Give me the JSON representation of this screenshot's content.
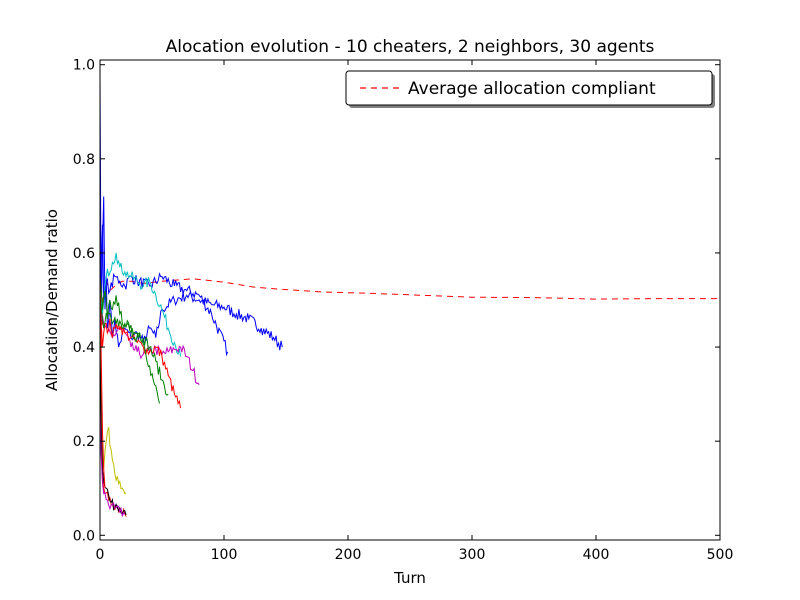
{
  "chart_data": {
    "type": "line",
    "title": "Alocation evolution - 10 cheaters, 2 neighbors, 30 agents",
    "xlabel": "Turn",
    "ylabel": "Allocation/Demand ratio",
    "xlim": [
      0,
      500
    ],
    "ylim": [
      -0.01,
      1.01
    ],
    "xticks": [
      "0",
      "100",
      "200",
      "300",
      "400",
      "500"
    ],
    "yticks": [
      "0.0",
      "0.2",
      "0.4",
      "0.6",
      "0.8",
      "1.0"
    ],
    "grid": false,
    "legend": {
      "position": "top-right",
      "entries": [
        "Average allocation compliant"
      ]
    },
    "series": [
      {
        "name": "Average allocation compliant",
        "color": "#ff0000",
        "dashed": true,
        "legend": true,
        "x": [
          1,
          2,
          3,
          5,
          8,
          12,
          18,
          25,
          35,
          50,
          75,
          100,
          125,
          150,
          180,
          220,
          260,
          300,
          350,
          400,
          450,
          500
        ],
        "y": [
          0.4,
          0.49,
          0.52,
          0.54,
          0.52,
          0.53,
          0.54,
          0.54,
          0.535,
          0.54,
          0.545,
          0.538,
          0.527,
          0.522,
          0.517,
          0.514,
          0.51,
          0.506,
          0.505,
          0.502,
          0.503,
          0.503
        ]
      },
      {
        "color": "#0000ff",
        "x": [
          0,
          1,
          2,
          3,
          4,
          5,
          6,
          8,
          10,
          12,
          15,
          20,
          25,
          30,
          35,
          40,
          45,
          50,
          60,
          70,
          80,
          90,
          100,
          110,
          120,
          130,
          140,
          147
        ],
        "y": [
          0.97,
          0.45,
          0.62,
          0.72,
          0.48,
          0.55,
          0.44,
          0.5,
          0.42,
          0.46,
          0.4,
          0.44,
          0.42,
          0.43,
          0.41,
          0.44,
          0.42,
          0.48,
          0.5,
          0.51,
          0.5,
          0.49,
          0.485,
          0.47,
          0.46,
          0.44,
          0.42,
          0.4
        ]
      },
      {
        "color": "#0000ff",
        "x": [
          0,
          1,
          2,
          3,
          5,
          8,
          12,
          16,
          20,
          25,
          30,
          40,
          50,
          60,
          70,
          80,
          90,
          103
        ],
        "y": [
          0.35,
          0.58,
          0.66,
          0.5,
          0.54,
          0.52,
          0.55,
          0.54,
          0.53,
          0.55,
          0.54,
          0.53,
          0.55,
          0.53,
          0.52,
          0.51,
          0.47,
          0.39
        ]
      },
      {
        "color": "#00bfbf",
        "x": [
          0,
          2,
          5,
          10,
          13,
          16,
          20,
          25,
          30,
          35,
          40,
          45,
          50,
          55,
          60,
          65
        ],
        "y": [
          0.52,
          0.47,
          0.55,
          0.58,
          0.6,
          0.57,
          0.56,
          0.55,
          0.54,
          0.53,
          0.54,
          0.51,
          0.48,
          0.44,
          0.41,
          0.38
        ]
      },
      {
        "color": "#bf00bf",
        "x": [
          0,
          3,
          6,
          10,
          15,
          20,
          25,
          30,
          35,
          40,
          45,
          50,
          55,
          60,
          65,
          70,
          75,
          80
        ],
        "y": [
          0.48,
          0.45,
          0.43,
          0.42,
          0.44,
          0.43,
          0.4,
          0.39,
          0.385,
          0.39,
          0.395,
          0.385,
          0.39,
          0.395,
          0.4,
          0.38,
          0.35,
          0.32
        ]
      },
      {
        "color": "#ff0000",
        "x": [
          0,
          2,
          4,
          6,
          8,
          10,
          12,
          15,
          20,
          25,
          30,
          35,
          40,
          45,
          50,
          55,
          60,
          65
        ],
        "y": [
          0.52,
          0.4,
          0.45,
          0.43,
          0.46,
          0.42,
          0.44,
          0.45,
          0.43,
          0.42,
          0.41,
          0.4,
          0.39,
          0.4,
          0.38,
          0.34,
          0.3,
          0.27
        ]
      },
      {
        "color": "#008000",
        "x": [
          0,
          2,
          4,
          6,
          8,
          10,
          13,
          16,
          20,
          24,
          28,
          32,
          36,
          40,
          44,
          48
        ],
        "y": [
          0.55,
          0.48,
          0.52,
          0.46,
          0.5,
          0.48,
          0.51,
          0.47,
          0.45,
          0.44,
          0.42,
          0.43,
          0.4,
          0.36,
          0.32,
          0.28
        ]
      },
      {
        "color": "#008000",
        "x": [
          0,
          3,
          6,
          10,
          14,
          18,
          22,
          26,
          30,
          35,
          40,
          45,
          50,
          55
        ],
        "y": [
          0.5,
          0.44,
          0.47,
          0.45,
          0.46,
          0.44,
          0.45,
          0.44,
          0.43,
          0.42,
          0.4,
          0.37,
          0.33,
          0.3
        ]
      },
      {
        "color": "#bfbf00",
        "x": [
          0,
          1,
          2,
          3,
          4,
          5,
          6,
          7,
          8,
          10,
          12,
          15,
          18,
          21
        ],
        "y": [
          0.52,
          0.3,
          0.16,
          0.14,
          0.18,
          0.2,
          0.22,
          0.23,
          0.19,
          0.16,
          0.13,
          0.11,
          0.1,
          0.09
        ]
      },
      {
        "color": "#ff0000",
        "x": [
          0,
          1,
          2,
          3,
          5,
          7,
          9,
          12,
          15,
          18,
          21
        ],
        "y": [
          0.36,
          0.2,
          0.12,
          0.1,
          0.09,
          0.075,
          0.065,
          0.055,
          0.05,
          0.045,
          0.04
        ]
      },
      {
        "color": "#000000",
        "x": [
          0,
          1,
          2,
          3,
          5,
          7,
          9,
          12,
          15,
          18,
          21
        ],
        "y": [
          0.4,
          0.23,
          0.14,
          0.115,
          0.1,
          0.085,
          0.07,
          0.06,
          0.052,
          0.046,
          0.043
        ]
      },
      {
        "color": "#bf00bf",
        "x": [
          0,
          1,
          2,
          4,
          6,
          9,
          12,
          16,
          20
        ],
        "y": [
          0.28,
          0.17,
          0.11,
          0.09,
          0.075,
          0.065,
          0.058,
          0.05,
          0.045
        ]
      },
      {
        "color": "#ff0000",
        "x": [
          0,
          1,
          2,
          3,
          4
        ],
        "y": [
          0.55,
          0.38,
          0.22,
          0.14,
          0.1
        ]
      }
    ]
  }
}
